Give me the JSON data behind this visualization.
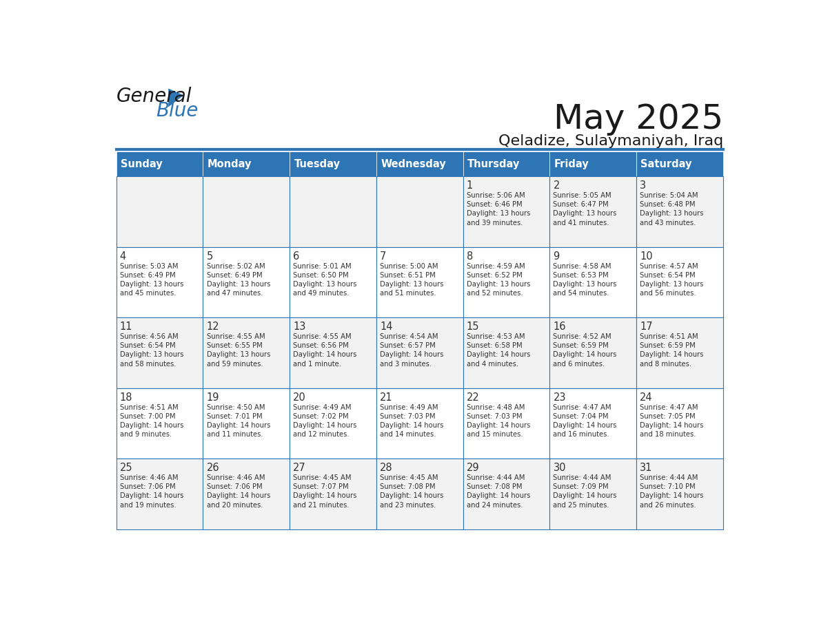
{
  "title": "May 2025",
  "subtitle": "Qeladize, Sulaymaniyah, Iraq",
  "days_of_week": [
    "Sunday",
    "Monday",
    "Tuesday",
    "Wednesday",
    "Thursday",
    "Friday",
    "Saturday"
  ],
  "header_bg": "#2E75B6",
  "header_text_color": "#FFFFFF",
  "cell_bg_light": "#F2F2F2",
  "cell_bg_white": "#FFFFFF",
  "cell_border_color": "#2E75B6",
  "text_color": "#333333",
  "title_color": "#1a1a1a",
  "calendar_data": [
    [
      {
        "day": null,
        "info": null
      },
      {
        "day": null,
        "info": null
      },
      {
        "day": null,
        "info": null
      },
      {
        "day": null,
        "info": null
      },
      {
        "day": 1,
        "info": "Sunrise: 5:06 AM\nSunset: 6:46 PM\nDaylight: 13 hours\nand 39 minutes."
      },
      {
        "day": 2,
        "info": "Sunrise: 5:05 AM\nSunset: 6:47 PM\nDaylight: 13 hours\nand 41 minutes."
      },
      {
        "day": 3,
        "info": "Sunrise: 5:04 AM\nSunset: 6:48 PM\nDaylight: 13 hours\nand 43 minutes."
      }
    ],
    [
      {
        "day": 4,
        "info": "Sunrise: 5:03 AM\nSunset: 6:49 PM\nDaylight: 13 hours\nand 45 minutes."
      },
      {
        "day": 5,
        "info": "Sunrise: 5:02 AM\nSunset: 6:49 PM\nDaylight: 13 hours\nand 47 minutes."
      },
      {
        "day": 6,
        "info": "Sunrise: 5:01 AM\nSunset: 6:50 PM\nDaylight: 13 hours\nand 49 minutes."
      },
      {
        "day": 7,
        "info": "Sunrise: 5:00 AM\nSunset: 6:51 PM\nDaylight: 13 hours\nand 51 minutes."
      },
      {
        "day": 8,
        "info": "Sunrise: 4:59 AM\nSunset: 6:52 PM\nDaylight: 13 hours\nand 52 minutes."
      },
      {
        "day": 9,
        "info": "Sunrise: 4:58 AM\nSunset: 6:53 PM\nDaylight: 13 hours\nand 54 minutes."
      },
      {
        "day": 10,
        "info": "Sunrise: 4:57 AM\nSunset: 6:54 PM\nDaylight: 13 hours\nand 56 minutes."
      }
    ],
    [
      {
        "day": 11,
        "info": "Sunrise: 4:56 AM\nSunset: 6:54 PM\nDaylight: 13 hours\nand 58 minutes."
      },
      {
        "day": 12,
        "info": "Sunrise: 4:55 AM\nSunset: 6:55 PM\nDaylight: 13 hours\nand 59 minutes."
      },
      {
        "day": 13,
        "info": "Sunrise: 4:55 AM\nSunset: 6:56 PM\nDaylight: 14 hours\nand 1 minute."
      },
      {
        "day": 14,
        "info": "Sunrise: 4:54 AM\nSunset: 6:57 PM\nDaylight: 14 hours\nand 3 minutes."
      },
      {
        "day": 15,
        "info": "Sunrise: 4:53 AM\nSunset: 6:58 PM\nDaylight: 14 hours\nand 4 minutes."
      },
      {
        "day": 16,
        "info": "Sunrise: 4:52 AM\nSunset: 6:59 PM\nDaylight: 14 hours\nand 6 minutes."
      },
      {
        "day": 17,
        "info": "Sunrise: 4:51 AM\nSunset: 6:59 PM\nDaylight: 14 hours\nand 8 minutes."
      }
    ],
    [
      {
        "day": 18,
        "info": "Sunrise: 4:51 AM\nSunset: 7:00 PM\nDaylight: 14 hours\nand 9 minutes."
      },
      {
        "day": 19,
        "info": "Sunrise: 4:50 AM\nSunset: 7:01 PM\nDaylight: 14 hours\nand 11 minutes."
      },
      {
        "day": 20,
        "info": "Sunrise: 4:49 AM\nSunset: 7:02 PM\nDaylight: 14 hours\nand 12 minutes."
      },
      {
        "day": 21,
        "info": "Sunrise: 4:49 AM\nSunset: 7:03 PM\nDaylight: 14 hours\nand 14 minutes."
      },
      {
        "day": 22,
        "info": "Sunrise: 4:48 AM\nSunset: 7:03 PM\nDaylight: 14 hours\nand 15 minutes."
      },
      {
        "day": 23,
        "info": "Sunrise: 4:47 AM\nSunset: 7:04 PM\nDaylight: 14 hours\nand 16 minutes."
      },
      {
        "day": 24,
        "info": "Sunrise: 4:47 AM\nSunset: 7:05 PM\nDaylight: 14 hours\nand 18 minutes."
      }
    ],
    [
      {
        "day": 25,
        "info": "Sunrise: 4:46 AM\nSunset: 7:06 PM\nDaylight: 14 hours\nand 19 minutes."
      },
      {
        "day": 26,
        "info": "Sunrise: 4:46 AM\nSunset: 7:06 PM\nDaylight: 14 hours\nand 20 minutes."
      },
      {
        "day": 27,
        "info": "Sunrise: 4:45 AM\nSunset: 7:07 PM\nDaylight: 14 hours\nand 21 minutes."
      },
      {
        "day": 28,
        "info": "Sunrise: 4:45 AM\nSunset: 7:08 PM\nDaylight: 14 hours\nand 23 minutes."
      },
      {
        "day": 29,
        "info": "Sunrise: 4:44 AM\nSunset: 7:08 PM\nDaylight: 14 hours\nand 24 minutes."
      },
      {
        "day": 30,
        "info": "Sunrise: 4:44 AM\nSunset: 7:09 PM\nDaylight: 14 hours\nand 25 minutes."
      },
      {
        "day": 31,
        "info": "Sunrise: 4:44 AM\nSunset: 7:10 PM\nDaylight: 14 hours\nand 26 minutes."
      }
    ]
  ],
  "logo_text_general": "General",
  "logo_text_blue": "Blue",
  "logo_color_general": "#1a1a1a",
  "logo_color_blue": "#2E75B6",
  "logo_triangle_color": "#2E75B6"
}
